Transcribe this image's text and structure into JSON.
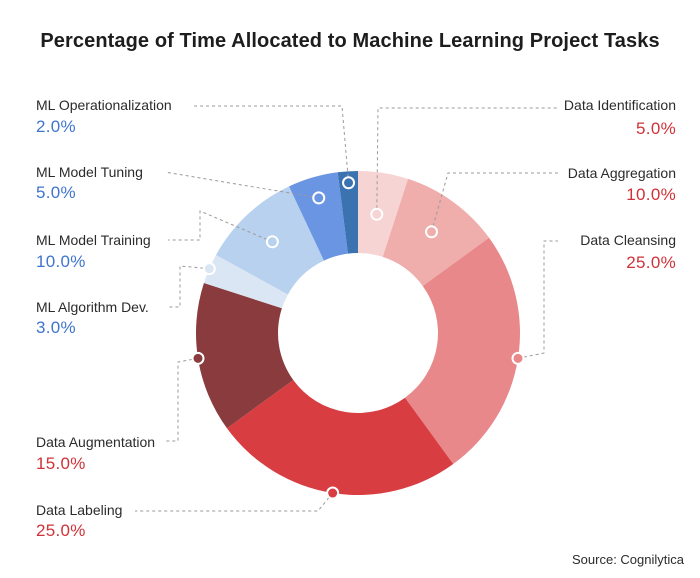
{
  "title": "Percentage of Time Allocated to Machine Learning Project Tasks",
  "source": "Source: Cognilytica",
  "chart_data": {
    "type": "pie",
    "donut": true,
    "title": "Percentage of Time Allocated to Machine Learning Project Tasks",
    "categories": [
      "Data Identification",
      "Data Aggregation",
      "Data Cleansing",
      "Data Labeling",
      "Data Augmentation",
      "ML Algorithm Dev.",
      "ML Model Training",
      "ML Model Tuning",
      "ML Operationalization"
    ],
    "values": [
      5.0,
      10.0,
      25.0,
      25.0,
      15.0,
      3.0,
      10.0,
      5.0,
      2.0
    ],
    "value_labels": [
      "5.0%",
      "10.0%",
      "25.0%",
      "25.0%",
      "15.0%",
      "3.0%",
      "10.0%",
      "5.0%",
      "2.0%"
    ],
    "colors": [
      "#f6d4d3",
      "#efaeab",
      "#e8888a",
      "#d73d41",
      "#8a3b3d",
      "#dbe6f4",
      "#b7d1ee",
      "#6a95e3",
      "#3b73b1"
    ],
    "value_colors": [
      "red",
      "red",
      "red",
      "red",
      "red",
      "blue",
      "blue",
      "blue",
      "blue"
    ],
    "start_angle_deg": 0,
    "direction": "clockwise"
  }
}
